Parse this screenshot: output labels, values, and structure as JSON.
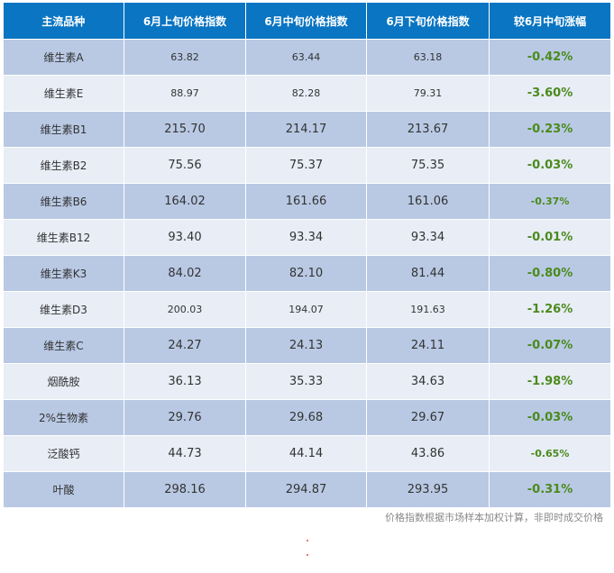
{
  "table": {
    "headers": [
      "主流品种",
      "6月上旬价格指数",
      "6月中旬价格指数",
      "6月下旬价格指数",
      "较6月中旬涨幅"
    ],
    "rows": [
      {
        "name": "维生素A",
        "early": "63.82",
        "mid": "63.44",
        "late": "63.18",
        "change": "-0.42%"
      },
      {
        "name": "维生素E",
        "early": "88.97",
        "mid": "82.28",
        "late": "79.31",
        "change": "-3.60%"
      },
      {
        "name": "维生素B1",
        "early": "215.70",
        "mid": "214.17",
        "late": "213.67",
        "change": "-0.23%"
      },
      {
        "name": "维生素B2",
        "early": "75.56",
        "mid": "75.37",
        "late": "75.35",
        "change": "-0.03%"
      },
      {
        "name": "维生素B6",
        "early": "164.02",
        "mid": "161.66",
        "late": "161.06",
        "change": "-0.37%"
      },
      {
        "name": "维生素B12",
        "early": "93.40",
        "mid": "93.34",
        "late": "93.34",
        "change": "-0.01%"
      },
      {
        "name": "维生素K3",
        "early": "84.02",
        "mid": "82.10",
        "late": "81.44",
        "change": "-0.80%"
      },
      {
        "name": "维生素D3",
        "early": "200.03",
        "mid": "194.07",
        "late": "191.63",
        "change": "-1.26%"
      },
      {
        "name": "维生素C",
        "early": "24.27",
        "mid": "24.13",
        "late": "24.11",
        "change": "-0.07%"
      },
      {
        "name": "烟酰胺",
        "early": "36.13",
        "mid": "35.33",
        "late": "34.63",
        "change": "-1.98%"
      },
      {
        "name": "2%生物素",
        "early": "29.76",
        "mid": "29.68",
        "late": "29.67",
        "change": "-0.03%"
      },
      {
        "name": "泛酸钙",
        "early": "44.73",
        "mid": "44.14",
        "late": "43.86",
        "change": "-0.65%"
      },
      {
        "name": "叶酸",
        "early": "298.16",
        "mid": "294.87",
        "late": "293.95",
        "change": "-0.31%"
      }
    ]
  },
  "note": "价格指数根据市场样本加权计算，非即时成交价格",
  "colors": {
    "header_bg": "#0a75c2",
    "row_dark": "#b9c9e4",
    "row_light": "#e8edf6",
    "change_text": "#4b8a1c",
    "note_text": "#888888"
  }
}
